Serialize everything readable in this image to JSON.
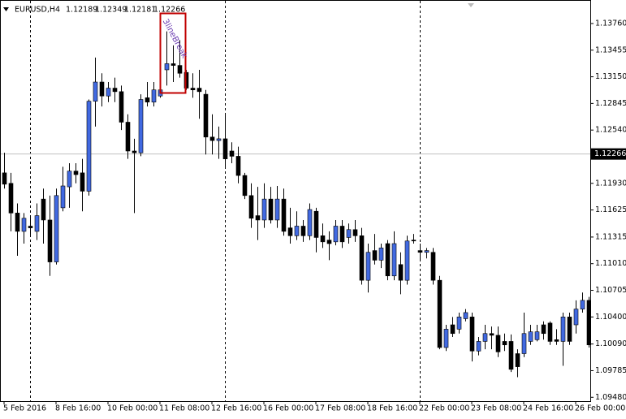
{
  "chart_data": {
    "type": "candlestick",
    "title": "EURUSD,H4",
    "header_ohlc": [
      1.12189,
      1.12349,
      1.12181,
      1.12266
    ],
    "current_price": 1.12266,
    "annotation": "3lineBreak",
    "up_color": "#4169e1",
    "down_color": "#000000",
    "categories": [
      "5 Feb 2016",
      null,
      null,
      null,
      null,
      null,
      null,
      null,
      "8 Feb 16:00",
      null,
      null,
      null,
      null,
      null,
      null,
      null,
      "10 Feb 00:00",
      null,
      null,
      null,
      null,
      null,
      null,
      null,
      "11 Feb 08:00",
      null,
      null,
      null,
      null,
      null,
      null,
      null,
      "12 Feb 16:00",
      null,
      null,
      null,
      null,
      null,
      null,
      null,
      "16 Feb 00:00",
      null,
      null,
      null,
      null,
      null,
      null,
      null,
      "17 Feb 08:00",
      null,
      null,
      null,
      null,
      null,
      null,
      null,
      "18 Feb 16:00",
      null,
      null,
      null,
      null,
      null,
      null,
      null,
      "22 Feb 00:00",
      null,
      null,
      null,
      null,
      null,
      null,
      null,
      "23 Feb 08:00",
      null,
      null,
      null,
      null,
      null,
      null,
      null,
      "24 Feb 16:00",
      null,
      null,
      null,
      null,
      null,
      null,
      null,
      "26 Feb 00:00",
      null,
      null
    ],
    "open": [
      1.1205,
      1.1193,
      1.1159,
      1.1138,
      1.1144,
      1.1138,
      1.1175,
      1.1151,
      1.1103,
      1.1165,
      1.1189,
      1.1207,
      1.1205,
      1.1184,
      1.1287,
      1.1309,
      1.1293,
      1.1302,
      1.1298,
      1.1263,
      1.123,
      1.1228,
      1.1291,
      1.1286,
      1.1293,
      1.1323,
      1.133,
      1.1328,
      1.132,
      1.1302,
      1.1302,
      1.1295,
      1.1246,
      1.1242,
      1.1244,
      1.123,
      1.1224,
      1.1202,
      1.1179,
      1.1156,
      1.1151,
      1.1175,
      1.1151,
      1.1175,
      1.1142,
      1.1133,
      1.1144,
      1.1133,
      1.1161,
      1.1133,
      1.1128,
      1.1126,
      1.1144,
      1.1131,
      1.114,
      1.1133,
      1.1082,
      1.1116,
      1.1105,
      1.1124,
      1.1087,
      1.11,
      1.1082,
      1.1128,
      1.1116,
      1.1114,
      1.1114,
      1.1082,
      1.1005,
      1.1031,
      1.1026,
      1.1038,
      1.104,
      1.1001,
      1.1012,
      1.1021,
      1.1019,
      1.1012,
      1.1012,
      1.0998,
      1.0998,
      1.1012,
      1.1014,
      1.1031,
      1.1033,
      1.1014,
      1.1012,
      1.104,
      1.1031,
      1.1049,
      1.1059
    ],
    "high": [
      1.1228,
      1.1205,
      1.117,
      1.1159,
      1.1156,
      1.117,
      1.1187,
      1.1179,
      1.1187,
      1.1212,
      1.1216,
      1.1216,
      1.1221,
      1.1289,
      1.1337,
      1.1319,
      1.1309,
      1.1314,
      1.1305,
      1.1272,
      1.1244,
      1.1295,
      1.1309,
      1.1309,
      1.1323,
      1.1367,
      1.1351,
      1.1357,
      1.1323,
      1.1319,
      1.1323,
      1.13,
      1.1272,
      1.1258,
      1.1272,
      1.124,
      1.1235,
      1.1205,
      1.1193,
      1.1189,
      1.1193,
      1.1189,
      1.119,
      1.1187,
      1.1165,
      1.1161,
      1.1151,
      1.117,
      1.1165,
      1.1147,
      1.1138,
      1.1151,
      1.1151,
      1.1147,
      1.1151,
      1.1142,
      1.1124,
      1.1135,
      1.1124,
      1.1128,
      1.1138,
      1.1114,
      1.1133,
      1.1135,
      1.1124,
      1.1119,
      1.1119,
      1.1087,
      1.1031,
      1.104,
      1.1045,
      1.1049,
      1.1045,
      1.1017,
      1.1031,
      1.1029,
      1.1029,
      1.1021,
      1.102,
      1.1003,
      1.1045,
      1.1031,
      1.1031,
      1.1035,
      1.1035,
      1.1026,
      1.1045,
      1.1045,
      1.1059,
      1.1068,
      1.1063
    ],
    "low": [
      1.1187,
      1.1138,
      1.111,
      1.1124,
      1.1133,
      1.1128,
      1.1124,
      1.1087,
      1.11,
      1.1161,
      1.1165,
      1.1193,
      1.1161,
      1.1179,
      1.1258,
      1.1281,
      1.1286,
      1.1286,
      1.1254,
      1.1221,
      1.1159,
      1.1224,
      1.1281,
      1.1281,
      1.1291,
      1.1305,
      1.1309,
      1.1314,
      1.13,
      1.1291,
      1.1267,
      1.1226,
      1.1226,
      1.1221,
      1.1212,
      1.1216,
      1.1193,
      1.1175,
      1.1142,
      1.1128,
      1.1142,
      1.1147,
      1.1142,
      1.1133,
      1.1124,
      1.1128,
      1.1126,
      1.1128,
      1.1114,
      1.1119,
      1.1105,
      1.1122,
      1.1119,
      1.1124,
      1.1126,
      1.1077,
      1.1068,
      1.11,
      1.1096,
      1.1082,
      1.1082,
      1.1066,
      1.1077,
      1.1124,
      1.1105,
      1.1107,
      1.1077,
      1.1003,
      1.1001,
      1.1017,
      1.1021,
      1.1035,
      1.0989,
      1.0996,
      1.1003,
      1.1003,
      1.0994,
      1.1001,
      1.0977,
      1.0971,
      1.0994,
      1.1008,
      1.1012,
      1.1014,
      1.1008,
      1.1008,
      1.0984,
      1.1008,
      1.1021,
      1.1045,
      1.1005
    ],
    "close": [
      1.1192,
      1.1159,
      1.1138,
      1.1153,
      1.1142,
      1.1156,
      1.1151,
      1.1103,
      1.1179,
      1.119,
      1.1207,
      1.1203,
      1.1184,
      1.1287,
      1.1309,
      1.1293,
      1.1302,
      1.1298,
      1.1263,
      1.123,
      1.1228,
      1.1289,
      1.1286,
      1.13,
      1.13,
      1.133,
      1.1328,
      1.1319,
      1.1302,
      1.13,
      1.1298,
      1.1246,
      1.1242,
      1.1244,
      1.1221,
      1.1224,
      1.1202,
      1.1179,
      1.1153,
      1.1151,
      1.1175,
      1.1151,
      1.1175,
      1.1138,
      1.1133,
      1.1144,
      1.1133,
      1.1163,
      1.1131,
      1.1126,
      1.1124,
      1.1144,
      1.1126,
      1.114,
      1.1133,
      1.1082,
      1.1114,
      1.1105,
      1.1119,
      1.1087,
      1.1124,
      1.1082,
      1.1127,
      1.1127,
      1.1114,
      1.1116,
      1.1082,
      1.1005,
      1.1026,
      1.1021,
      1.104,
      1.1045,
      1.1001,
      1.1012,
      1.1021,
      1.1019,
      1.1,
      1.1008,
      1.098,
      1.0983,
      1.1021,
      1.1023,
      1.1023,
      1.1021,
      1.1012,
      1.1012,
      1.104,
      1.1012,
      1.1049,
      1.1059,
      1.1008
    ],
    "ylim": [
      1.09436,
      1.1402
    ],
    "yticks": [
      {
        "value": 1.1376,
        "label": "1.13760"
      },
      1.13455,
      {
        "value": 1.1315,
        "label": "1.13150"
      },
      1.12845,
      {
        "value": 1.1254,
        "label": "1.12540"
      },
      {
        "value": 1.1193,
        "label": "1.11930"
      },
      1.11625,
      1.11315,
      {
        "value": 1.1101,
        "label": "1.11010"
      },
      1.10705,
      {
        "value": 1.104,
        "label": "1.10400"
      },
      {
        "value": 1.1009,
        "label": "1.10090"
      },
      1.09785,
      {
        "value": 1.0948,
        "label": "1.09480"
      }
    ]
  }
}
